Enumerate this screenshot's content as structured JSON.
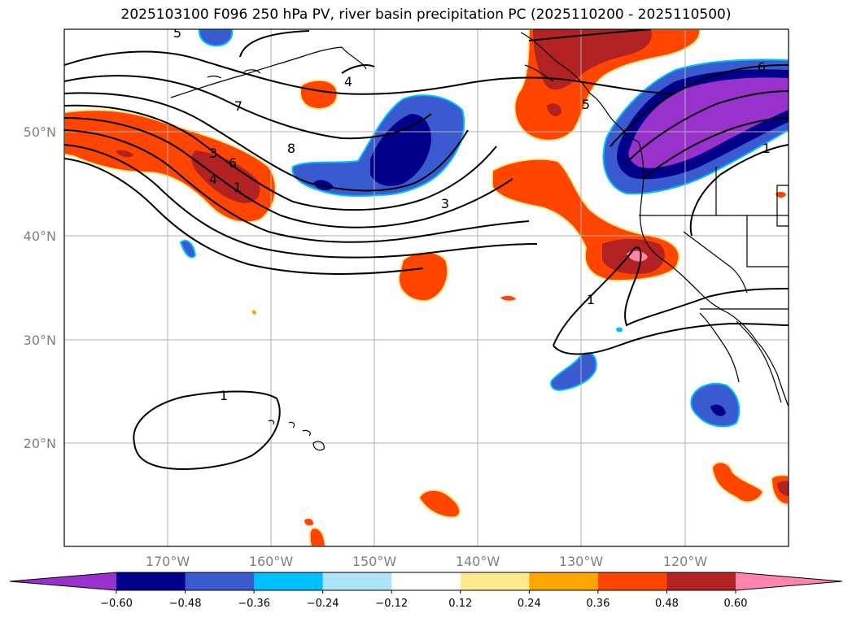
{
  "title": "2025103100 F096 250 hPa PV, river basin precipitation PC (2025110200 - 2025110500)",
  "lat_labels": [
    "50°N",
    "40°N",
    "30°N",
    "20°N"
  ],
  "lon_labels": [
    "170°W",
    "160°W",
    "150°W",
    "140°W",
    "130°W",
    "120°W"
  ],
  "colorbar": {
    "ticks": [
      "−0.60",
      "−0.48",
      "−0.36",
      "−0.24",
      "−0.12",
      "0.12",
      "0.24",
      "0.36",
      "0.48",
      "0.60"
    ],
    "colors": [
      "#9932CC",
      "#00008B",
      "#3A5BCF",
      "#00BFFF",
      "#AEE3FA",
      "#FFFFFF",
      "#FFE98F",
      "#FFA500",
      "#FF4500",
      "#B22222",
      "#FF85AD"
    ]
  },
  "contour_labels": [
    "5",
    "4",
    "7",
    "8",
    "3",
    "6",
    "1",
    "1",
    "1",
    "1",
    "3",
    "4",
    "5",
    "6"
  ],
  "colors": {
    "gridline": "#b0b0b0",
    "contour": "#000000",
    "coast": "#000000"
  }
}
